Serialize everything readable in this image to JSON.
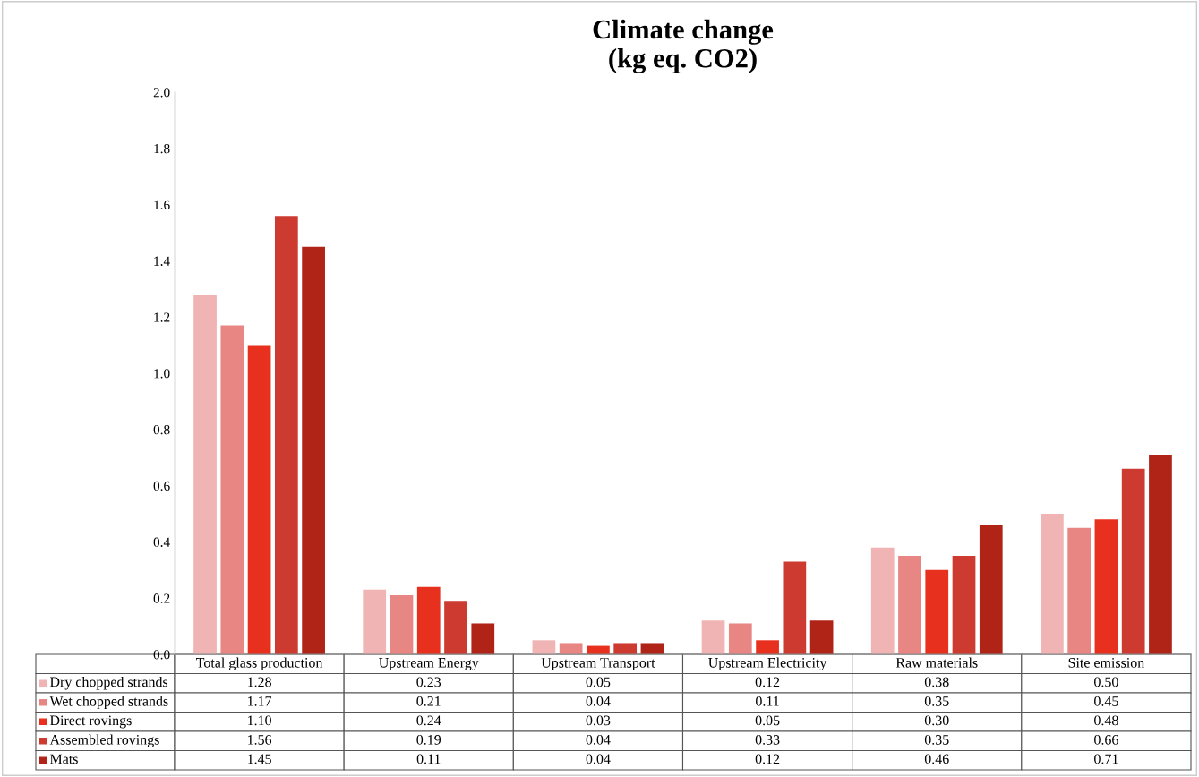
{
  "chart_data": {
    "type": "bar",
    "title": "Climate change\n(kg eq. CO2)",
    "categories": [
      "Total glass production",
      "Upstream Energy",
      "Upstream Transport",
      "Upstream Electricity",
      "Raw materials",
      "Site emission"
    ],
    "series": [
      {
        "name": "Dry chopped strands",
        "color": "#f0b4b4",
        "values": [
          1.28,
          0.23,
          0.05,
          0.12,
          0.38,
          0.5
        ],
        "value_labels": [
          "1.28",
          "0.23",
          "0.05",
          "0.12",
          "0.38",
          "0.50"
        ]
      },
      {
        "name": "Wet chopped strands",
        "color": "#e88684",
        "values": [
          1.17,
          0.21,
          0.04,
          0.11,
          0.35,
          0.45
        ],
        "value_labels": [
          "1.17",
          "0.21",
          "0.04",
          "0.11",
          "0.35",
          "0.45"
        ]
      },
      {
        "name": "Direct rovings",
        "color": "#e8301e",
        "values": [
          1.1,
          0.24,
          0.03,
          0.05,
          0.3,
          0.48
        ],
        "value_labels": [
          "1.10",
          "0.24",
          "0.03",
          "0.05",
          "0.30",
          "0.48"
        ]
      },
      {
        "name": "Assembled rovings",
        "color": "#cc3a30",
        "values": [
          1.56,
          0.19,
          0.04,
          0.33,
          0.35,
          0.66
        ],
        "value_labels": [
          "1.56",
          "0.19",
          "0.04",
          "0.33",
          "0.35",
          "0.66"
        ]
      },
      {
        "name": "Mats",
        "color": "#b02418",
        "values": [
          1.45,
          0.11,
          0.04,
          0.12,
          0.46,
          0.71
        ],
        "value_labels": [
          "1.45",
          "0.11",
          "0.04",
          "0.12",
          "0.46",
          "0.71"
        ]
      }
    ],
    "ylim": [
      0,
      2.0
    ],
    "yticks": [
      {
        "value": 0,
        "label": "0.0"
      },
      {
        "value": 0.2,
        "label": "0.2"
      },
      {
        "value": 0.4,
        "label": "0.4"
      },
      {
        "value": 0.6,
        "label": "0.6"
      },
      {
        "value": 0.8,
        "label": "0.8"
      },
      {
        "value": 1.0,
        "label": "1.0"
      },
      {
        "value": 1.2,
        "label": "1.2"
      },
      {
        "value": 1.4,
        "label": "1.4"
      },
      {
        "value": 1.6,
        "label": "1.6"
      },
      {
        "value": 1.8,
        "label": "1.8"
      },
      {
        "value": 2.0,
        "label": "2.0"
      }
    ],
    "grid": false,
    "legend": "bottom"
  }
}
